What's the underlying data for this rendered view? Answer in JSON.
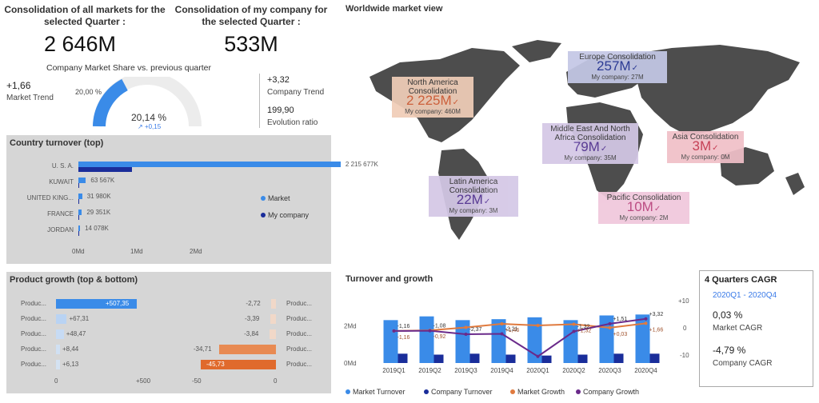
{
  "kpi": {
    "all_markets_title": "Consolidation of all markets for the selected Quarter :",
    "all_markets_value": "2 646M",
    "my_company_title": "Consolidation of my company for the selected Quarter :",
    "my_company_value": "533M",
    "share_title": "Company Market Share vs. previous quarter",
    "market_trend_value": "+1,66",
    "market_trend_label": "Market Trend",
    "prev_share": "20,00 %",
    "curr_share": "20,14 %",
    "share_delta": "+0,15",
    "company_trend_value": "+3,32",
    "company_trend_label": "Company Trend",
    "evolution_value": "199,90",
    "evolution_label": "Evolution ratio"
  },
  "country": {
    "title": "Country turnover (top)",
    "rows": [
      {
        "country": "U. S. A.",
        "value": "2 215 677K"
      },
      {
        "country": "KUWAIT",
        "value": "63 567K"
      },
      {
        "country": "UNITED KING...",
        "value": "31 980K"
      },
      {
        "country": "FRANCE",
        "value": "29 351K"
      },
      {
        "country": "JORDAN",
        "value": "14 078K"
      }
    ],
    "axis": [
      "0Md",
      "1Md",
      "2Md"
    ],
    "legend": [
      {
        "label": "Market",
        "color": "#3a8be8"
      },
      {
        "label": "My company",
        "color": "#1a2d9a"
      }
    ]
  },
  "product": {
    "title": "Product growth (top & bottom)",
    "left_rows": [
      {
        "label": "Produc...",
        "value": "+507,35"
      },
      {
        "label": "Produc...",
        "value": "+67,31"
      },
      {
        "label": "Produc...",
        "value": "+48,47"
      },
      {
        "label": "Produc...",
        "value": "+8,44"
      },
      {
        "label": "Produc...",
        "value": "+6,13"
      }
    ],
    "right_rows": [
      {
        "label": "Produc...",
        "value": "-2,72"
      },
      {
        "label": "Produc...",
        "value": "-3,39"
      },
      {
        "label": "Produc...",
        "value": "-3,84"
      },
      {
        "label": "Produc...",
        "value": "-34,71"
      },
      {
        "label": "Produc...",
        "value": "-45,73"
      }
    ],
    "left_axis": [
      "0",
      "+500"
    ],
    "right_axis": [
      "-50",
      "0"
    ]
  },
  "map": {
    "title": "Worldwide market view",
    "regions": [
      {
        "name": "Europe Consolidation",
        "value": "257M",
        "company": "My company: 27M"
      },
      {
        "name": "North America Consolidation",
        "value": "2 225M",
        "company": "My company: 460M"
      },
      {
        "name": "Middle East And North Africa Consolidation",
        "value": "79M",
        "company": "My company: 35M"
      },
      {
        "name": "Asia Consolidation",
        "value": "3M",
        "company": "My company: 0M"
      },
      {
        "name": "Latin America Consolidation",
        "value": "22M",
        "company": "My company: 3M"
      },
      {
        "name": "Pacific Consolidation",
        "value": "10M",
        "company": "My company: 2M"
      }
    ]
  },
  "turnover": {
    "title": "Turnover and growth",
    "left_ticks": [
      "2Md",
      "0Md"
    ],
    "right_ticks": [
      "+10",
      "0",
      "-10"
    ],
    "legend": [
      {
        "label": "Market Turnover",
        "color": "#3a8be8"
      },
      {
        "label": "Company Turnover",
        "color": "#1a2d9a"
      },
      {
        "label": "Market Growth",
        "color": "#e07a3e"
      },
      {
        "label": "Company Growth",
        "color": "#6a2a8a"
      }
    ]
  },
  "cagr": {
    "title": "4 Quarters CAGR",
    "range": "2020Q1 - 2020Q4",
    "market_value": "0,03 %",
    "market_label": "Market CAGR",
    "company_value": "-4,79 %",
    "company_label": "Company CAGR"
  },
  "chart_data": {
    "type": "bar",
    "categories": [
      "2019Q1",
      "2019Q2",
      "2019Q3",
      "2019Q4",
      "2020Q1",
      "2020Q2",
      "2020Q3",
      "2020Q4"
    ],
    "series": [
      {
        "name": "Market Turnover",
        "values": [
          2.3,
          2.5,
          2.3,
          2.35,
          2.45,
          2.3,
          2.55,
          2.6
        ]
      },
      {
        "name": "Company Turnover",
        "values": [
          0.5,
          0.45,
          0.5,
          0.45,
          0.4,
          0.45,
          0.5,
          0.5
        ]
      },
      {
        "name": "Market Growth",
        "values": [
          -1.16,
          -0.92,
          0.16,
          1.46,
          0.9,
          1.32,
          0.03,
          1.66
        ]
      },
      {
        "name": "Company Growth",
        "values": [
          -1.16,
          -1.08,
          -2.37,
          -2.21,
          -10.56,
          -1.32,
          1.51,
          3.32
        ]
      }
    ],
    "value_labels": {
      "market_growth": [
        "-1,16",
        "-0,92",
        "",
        "+1,46",
        "",
        "+1,32",
        "+0,03",
        "+1,66"
      ],
      "company_growth": [
        "-1,16",
        "-1,08",
        "-2,37",
        "-2,21",
        "",
        "-1,32",
        "+1,51",
        "+3,32"
      ]
    },
    "ylim_left": [
      0,
      3
    ],
    "ylim_right": [
      -13,
      13
    ],
    "xlabel": "",
    "ylabel": ""
  }
}
